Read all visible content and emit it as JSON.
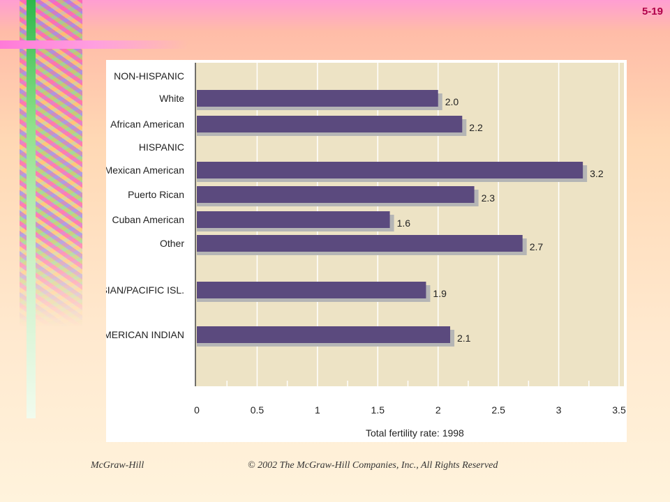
{
  "slide": {
    "number": "5-19"
  },
  "footer": {
    "publisher": "McGraw-Hill",
    "copyright": "© 2002 The McGraw-Hill Companies, Inc., All Rights Reserved"
  },
  "colors": {
    "bar": "#5b4a7e",
    "bar_shadow": "#b5b5b5",
    "plot_bg": "#ede3c5",
    "gridline": "#ffffff"
  },
  "chart_data": {
    "type": "bar",
    "orientation": "horizontal",
    "xlabel": "Total fertility rate: 1998",
    "xlim": [
      0,
      3.5
    ],
    "xticks": [
      "0",
      "0.5",
      "1",
      "1.5",
      "2",
      "2.5",
      "3",
      "3.5"
    ],
    "grid": true,
    "group_headers": [
      "NON-HISPANIC",
      "HISPANIC"
    ],
    "categories": [
      "White",
      "African American",
      "Mexican American",
      "Puerto Rican",
      "Cuban American",
      "Other",
      "ASIAN/PACIFIC ISL.",
      "AMERICAN INDIAN"
    ],
    "values": [
      2.0,
      2.2,
      3.2,
      2.3,
      1.6,
      2.7,
      1.9,
      2.1
    ],
    "data_labels": [
      "2.0",
      "2.2",
      "3.2",
      "2.3",
      "1.6",
      "2.7",
      "1.9",
      "2.1"
    ]
  }
}
